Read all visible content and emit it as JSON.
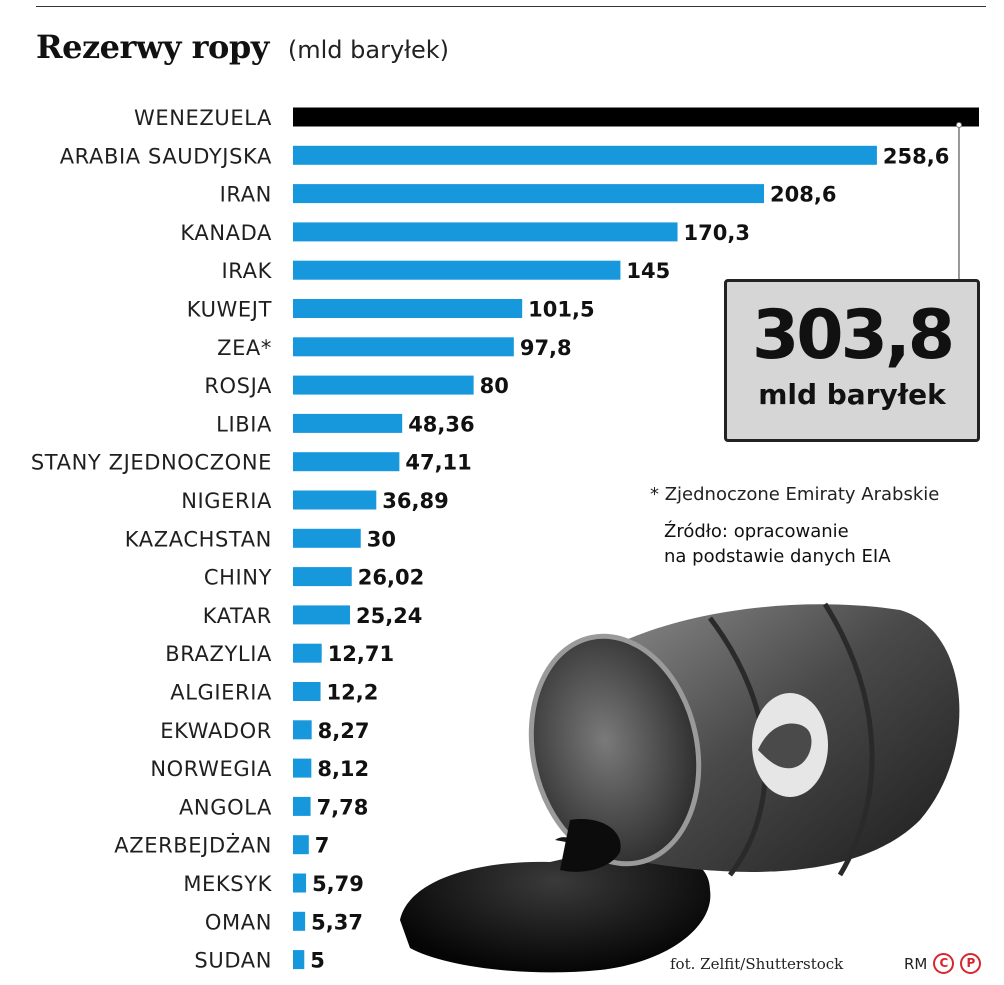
{
  "title": "Rezerwy ropy",
  "subtitle": "(mld baryłek)",
  "callout": {
    "value": "303,8",
    "unit": "mld baryłek"
  },
  "footnote": "* Zjednoczone Emiraty Arabskie",
  "source_line1": "Źródło: opracowanie",
  "source_line2": "na podstawie danych EIA",
  "credit": "fot. Zelfit/Shutterstock",
  "rm": "RM",
  "copyright_c": "C",
  "copyright_p": "P",
  "colors": {
    "bar": "#1798dd",
    "highlight_bar": "#000000",
    "callout_bg": "#d6d6d6"
  },
  "chart_data": {
    "type": "bar",
    "orientation": "horizontal",
    "categories": [
      "WENEZUELA",
      "ARABIA SAUDYJSKA",
      "IRAN",
      "KANADA",
      "IRAK",
      "KUWEJT",
      "ZEA*",
      "ROSJA",
      "LIBIA",
      "STANY ZJEDNOCZONE",
      "NIGERIA",
      "KAZACHSTAN",
      "CHINY",
      "KATAR",
      "BRAZYLIA",
      "ALGIERIA",
      "EKWADOR",
      "NORWEGIA",
      "ANGOLA",
      "AZERBEJDŻAN",
      "MEKSYK",
      "OMAN",
      "SUDAN"
    ],
    "values": [
      303.8,
      258.6,
      208.6,
      170.3,
      145,
      101.5,
      97.8,
      80,
      48.36,
      47.11,
      36.89,
      30,
      26.02,
      25.24,
      12.71,
      12.2,
      8.27,
      8.12,
      7.78,
      7,
      5.79,
      5.37,
      5
    ],
    "value_labels": [
      "",
      "258,6",
      "208,6",
      "170,3",
      "145",
      "101,5",
      "97,8",
      "80",
      "48,36",
      "47,11",
      "36,89",
      "30",
      "26,02",
      "25,24",
      "12,71",
      "12,2",
      "8,27",
      "8,12",
      "7,78",
      "7",
      "5,79",
      "5,37",
      "5"
    ],
    "highlight_index": 0,
    "grid": false,
    "legend": "none"
  }
}
